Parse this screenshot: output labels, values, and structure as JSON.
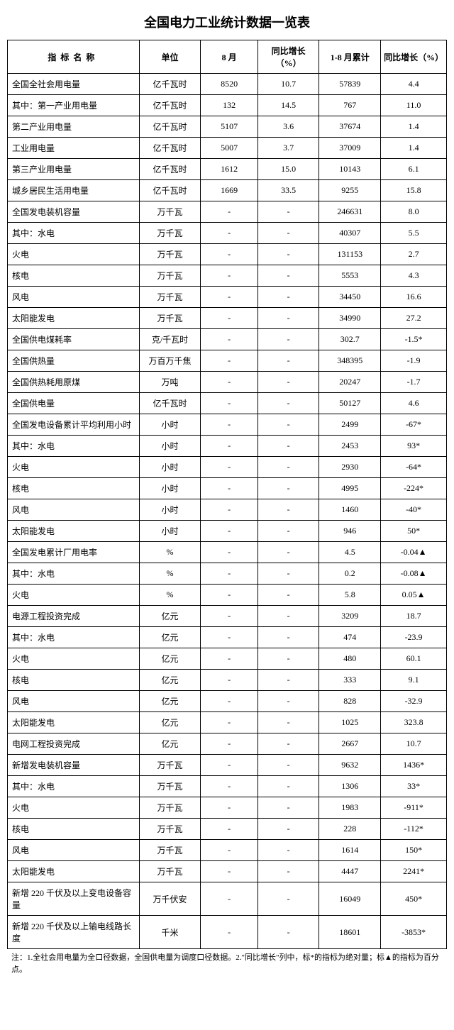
{
  "title": "全国电力工业统计数据一览表",
  "headers": {
    "name": "指标名称",
    "unit": "单位",
    "aug": "8 月",
    "yoy1": "同比增长（%）",
    "cum": "1-8 月累计",
    "yoy2": "同比增长（%）"
  },
  "rows": [
    {
      "name": "全国全社会用电量",
      "indent": 0,
      "unit": "亿千瓦时",
      "aug": "8520",
      "yoy1": "10.7",
      "cum": "57839",
      "yoy2": "4.4"
    },
    {
      "name": "其中：第一产业用电量",
      "indent": 1,
      "unit": "亿千瓦时",
      "aug": "132",
      "yoy1": "14.5",
      "cum": "767",
      "yoy2": "11.0"
    },
    {
      "name": "第二产业用电量",
      "indent": 2,
      "unit": "亿千瓦时",
      "aug": "5107",
      "yoy1": "3.6",
      "cum": "37674",
      "yoy2": "1.4"
    },
    {
      "name": "工业用电量",
      "indent": 2,
      "unit": "亿千瓦时",
      "aug": "5007",
      "yoy1": "3.7",
      "cum": "37009",
      "yoy2": "1.4"
    },
    {
      "name": "第三产业用电量",
      "indent": 2,
      "unit": "亿千瓦时",
      "aug": "1612",
      "yoy1": "15.0",
      "cum": "10143",
      "yoy2": "6.1"
    },
    {
      "name": "城乡居民生活用电量",
      "indent": 2,
      "unit": "亿千瓦时",
      "aug": "1669",
      "yoy1": "33.5",
      "cum": "9255",
      "yoy2": "15.8"
    },
    {
      "name": "全国发电装机容量",
      "indent": 0,
      "unit": "万千瓦",
      "aug": "-",
      "yoy1": "-",
      "cum": "246631",
      "yoy2": "8.0"
    },
    {
      "name": "其中：水电",
      "indent": 1,
      "unit": "万千瓦",
      "aug": "-",
      "yoy1": "-",
      "cum": "40307",
      "yoy2": "5.5"
    },
    {
      "name": "火电",
      "indent": 2,
      "unit": "万千瓦",
      "aug": "-",
      "yoy1": "-",
      "cum": "131153",
      "yoy2": "2.7"
    },
    {
      "name": "核电",
      "indent": 2,
      "unit": "万千瓦",
      "aug": "-",
      "yoy1": "-",
      "cum": "5553",
      "yoy2": "4.3"
    },
    {
      "name": "风电",
      "indent": 2,
      "unit": "万千瓦",
      "aug": "-",
      "yoy1": "-",
      "cum": "34450",
      "yoy2": "16.6"
    },
    {
      "name": "太阳能发电",
      "indent": 2,
      "unit": "万千瓦",
      "aug": "-",
      "yoy1": "-",
      "cum": "34990",
      "yoy2": "27.2"
    },
    {
      "name": "全国供电煤耗率",
      "indent": 0,
      "unit": "克/千瓦时",
      "aug": "-",
      "yoy1": "-",
      "cum": "302.7",
      "yoy2": "-1.5*"
    },
    {
      "name": "全国供热量",
      "indent": 0,
      "unit": "万百万千焦",
      "aug": "-",
      "yoy1": "-",
      "cum": "348395",
      "yoy2": "-1.9"
    },
    {
      "name": "全国供热耗用原煤",
      "indent": 0,
      "unit": "万吨",
      "aug": "-",
      "yoy1": "-",
      "cum": "20247",
      "yoy2": "-1.7"
    },
    {
      "name": "全国供电量",
      "indent": 0,
      "unit": "亿千瓦时",
      "aug": "-",
      "yoy1": "-",
      "cum": "50127",
      "yoy2": "4.6"
    },
    {
      "name": "全国发电设备累计平均利用小时",
      "indent": 0,
      "unit": "小时",
      "aug": "-",
      "yoy1": "-",
      "cum": "2499",
      "yoy2": "-67*"
    },
    {
      "name": "其中：水电",
      "indent": 1,
      "unit": "小时",
      "aug": "-",
      "yoy1": "-",
      "cum": "2453",
      "yoy2": "93*"
    },
    {
      "name": "火电",
      "indent": 2,
      "unit": "小时",
      "aug": "-",
      "yoy1": "-",
      "cum": "2930",
      "yoy2": "-64*"
    },
    {
      "name": "核电",
      "indent": 2,
      "unit": "小时",
      "aug": "-",
      "yoy1": "-",
      "cum": "4995",
      "yoy2": "-224*"
    },
    {
      "name": "风电",
      "indent": 2,
      "unit": "小时",
      "aug": "-",
      "yoy1": "-",
      "cum": "1460",
      "yoy2": "-40*"
    },
    {
      "name": "太阳能发电",
      "indent": 2,
      "unit": "小时",
      "aug": "-",
      "yoy1": "-",
      "cum": "946",
      "yoy2": "50*"
    },
    {
      "name": "全国发电累计厂用电率",
      "indent": 0,
      "unit": "%",
      "aug": "-",
      "yoy1": "-",
      "cum": "4.5",
      "yoy2": "-0.04▲"
    },
    {
      "name": "其中：水电",
      "indent": 1,
      "unit": "%",
      "aug": "-",
      "yoy1": "-",
      "cum": "0.2",
      "yoy2": "-0.08▲"
    },
    {
      "name": "火电",
      "indent": 2,
      "unit": "%",
      "aug": "-",
      "yoy1": "-",
      "cum": "5.8",
      "yoy2": "0.05▲"
    },
    {
      "name": "电源工程投资完成",
      "indent": 0,
      "unit": "亿元",
      "aug": "-",
      "yoy1": "-",
      "cum": "3209",
      "yoy2": "18.7"
    },
    {
      "name": "其中：水电",
      "indent": 1,
      "unit": "亿元",
      "aug": "-",
      "yoy1": "-",
      "cum": "474",
      "yoy2": "-23.9"
    },
    {
      "name": "火电",
      "indent": 2,
      "unit": "亿元",
      "aug": "-",
      "yoy1": "-",
      "cum": "480",
      "yoy2": "60.1"
    },
    {
      "name": "核电",
      "indent": 2,
      "unit": "亿元",
      "aug": "-",
      "yoy1": "-",
      "cum": "333",
      "yoy2": "9.1"
    },
    {
      "name": "风电",
      "indent": 2,
      "unit": "亿元",
      "aug": "-",
      "yoy1": "-",
      "cum": "828",
      "yoy2": "-32.9"
    },
    {
      "name": "太阳能发电",
      "indent": 2,
      "unit": "亿元",
      "aug": "-",
      "yoy1": "-",
      "cum": "1025",
      "yoy2": "323.8"
    },
    {
      "name": "电网工程投资完成",
      "indent": 0,
      "unit": "亿元",
      "aug": "-",
      "yoy1": "-",
      "cum": "2667",
      "yoy2": "10.7"
    },
    {
      "name": "新增发电装机容量",
      "indent": 0,
      "unit": "万千瓦",
      "aug": "-",
      "yoy1": "-",
      "cum": "9632",
      "yoy2": "1436*"
    },
    {
      "name": "其中：水电",
      "indent": 1,
      "unit": "万千瓦",
      "aug": "-",
      "yoy1": "-",
      "cum": "1306",
      "yoy2": "33*"
    },
    {
      "name": "火电",
      "indent": 2,
      "unit": "万千瓦",
      "aug": "-",
      "yoy1": "-",
      "cum": "1983",
      "yoy2": "-911*"
    },
    {
      "name": "核电",
      "indent": 2,
      "unit": "万千瓦",
      "aug": "-",
      "yoy1": "-",
      "cum": "228",
      "yoy2": "-112*"
    },
    {
      "name": "风电",
      "indent": 2,
      "unit": "万千瓦",
      "aug": "-",
      "yoy1": "-",
      "cum": "1614",
      "yoy2": "150*"
    },
    {
      "name": "太阳能发电",
      "indent": 2,
      "unit": "万千瓦",
      "aug": "-",
      "yoy1": "-",
      "cum": "4447",
      "yoy2": "2241*"
    },
    {
      "name": "新增 220 千伏及以上变电设备容量",
      "indent": 0,
      "unit": "万千伏安",
      "aug": "-",
      "yoy1": "-",
      "cum": "16049",
      "yoy2": "450*"
    },
    {
      "name": "新增 220 千伏及以上输电线路长度",
      "indent": 0,
      "unit": "千米",
      "aug": "-",
      "yoy1": "-",
      "cum": "18601",
      "yoy2": "-3853*"
    }
  ],
  "footnote": "注：1.全社会用电量为全口径数据，全国供电量为调度口径数据。2.\"同比增长\"列中，标*的指标为绝对量；标▲的指标为百分点。"
}
